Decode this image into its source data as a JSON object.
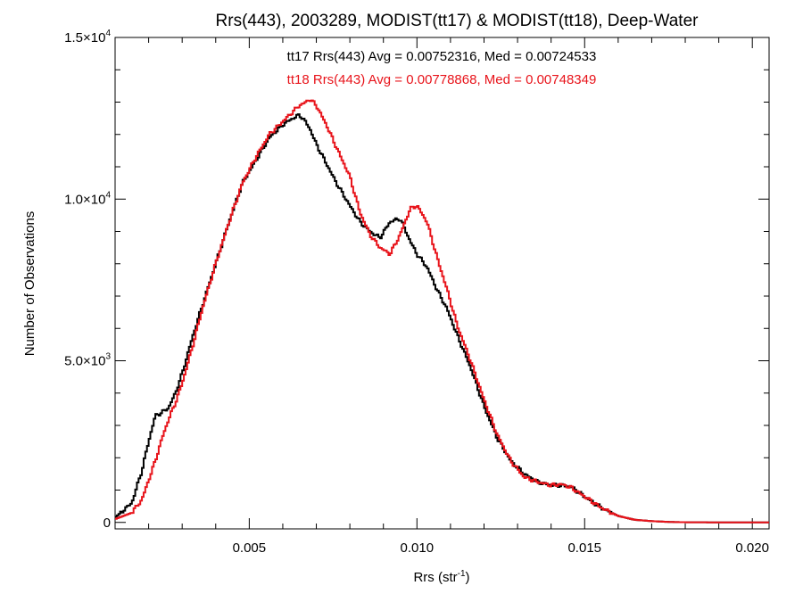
{
  "chart_data": {
    "type": "line",
    "title": "Rrs(443), 2003289, MODIST(tt17) & MODIST(tt18), Deep-Water",
    "xlabel": "Rrs (str",
    "xlabel_superscript": "-1",
    "xlabel_suffix": ")",
    "ylabel": "Number of Observations",
    "xlim": [
      0.001,
      0.0205
    ],
    "ylim": [
      -200,
      15000
    ],
    "x_ticks": [
      {
        "value": 0.005,
        "label": "0.005"
      },
      {
        "value": 0.01,
        "label": "0.010"
      },
      {
        "value": 0.015,
        "label": "0.015"
      },
      {
        "value": 0.02,
        "label": "0.020"
      }
    ],
    "y_ticks": [
      {
        "value": 0,
        "label": "0",
        "sup": ""
      },
      {
        "value": 5000,
        "label": "5.0×10",
        "sup": "3"
      },
      {
        "value": 10000,
        "label": "1.0×10",
        "sup": "4"
      },
      {
        "value": 15000,
        "label": "1.5×10",
        "sup": "4"
      }
    ],
    "grid": false,
    "annotations": [
      {
        "text": "tt17 Rrs(443) Avg = 0.00752316, Med = 0.00724533",
        "color": "#000000"
      },
      {
        "text": "tt18 Rrs(443) Avg = 0.00778868, Med = 0.00748349",
        "color": "#e8141b"
      }
    ],
    "series": [
      {
        "color": "#000000",
        "step": true,
        "x": [
          0.001,
          0.0015,
          0.0018,
          0.002,
          0.0022,
          0.0024,
          0.0026,
          0.0028,
          0.003,
          0.0033,
          0.0036,
          0.004,
          0.0044,
          0.0048,
          0.0052,
          0.0056,
          0.006,
          0.0063,
          0.0065,
          0.0066,
          0.0068,
          0.007,
          0.0073,
          0.0076,
          0.008,
          0.0083,
          0.0086,
          0.0089,
          0.0092,
          0.0095,
          0.0098,
          0.01,
          0.0103,
          0.0106,
          0.0109,
          0.0112,
          0.0116,
          0.012,
          0.0124,
          0.0128,
          0.0132,
          0.0136,
          0.014,
          0.0143,
          0.0146,
          0.015,
          0.0155,
          0.016,
          0.0165,
          0.017,
          0.0175,
          0.018,
          0.019,
          0.0205
        ],
        "y": [
          150,
          600,
          1600,
          2500,
          3300,
          3400,
          3550,
          4000,
          4600,
          5700,
          6700,
          8000,
          9300,
          10500,
          11200,
          11900,
          12300,
          12500,
          12600,
          12500,
          12200,
          11700,
          11100,
          10500,
          9800,
          9300,
          9000,
          8800,
          9300,
          9400,
          8700,
          8300,
          7900,
          7200,
          6600,
          5800,
          4800,
          3600,
          2600,
          1900,
          1500,
          1250,
          1150,
          1150,
          1100,
          800,
          450,
          200,
          80,
          40,
          15,
          5,
          0,
          0
        ]
      },
      {
        "color": "#e8141b",
        "step": true,
        "x": [
          0.001,
          0.0015,
          0.0018,
          0.002,
          0.0022,
          0.0024,
          0.0026,
          0.0028,
          0.003,
          0.0033,
          0.0036,
          0.004,
          0.0044,
          0.0048,
          0.0052,
          0.0056,
          0.006,
          0.0063,
          0.0065,
          0.0067,
          0.0068,
          0.007,
          0.0073,
          0.0076,
          0.008,
          0.0083,
          0.0086,
          0.0089,
          0.0092,
          0.0095,
          0.0098,
          0.01,
          0.0103,
          0.0106,
          0.0109,
          0.0112,
          0.0116,
          0.012,
          0.0124,
          0.0128,
          0.0132,
          0.0136,
          0.014,
          0.0143,
          0.0146,
          0.015,
          0.0155,
          0.016,
          0.0165,
          0.017,
          0.0175,
          0.018,
          0.019,
          0.0205
        ],
        "y": [
          100,
          300,
          700,
          1300,
          1900,
          2600,
          3200,
          3700,
          4300,
          5400,
          6600,
          8000,
          9300,
          10500,
          11300,
          12000,
          12400,
          12700,
          12900,
          13000,
          13100,
          12900,
          12300,
          11600,
          10700,
          9600,
          8900,
          8500,
          8300,
          8900,
          9700,
          9800,
          9300,
          8200,
          7200,
          6100,
          5000,
          3800,
          2700,
          1900,
          1400,
          1250,
          1150,
          1180,
          1080,
          800,
          450,
          200,
          80,
          40,
          15,
          5,
          0,
          0
        ]
      }
    ]
  }
}
